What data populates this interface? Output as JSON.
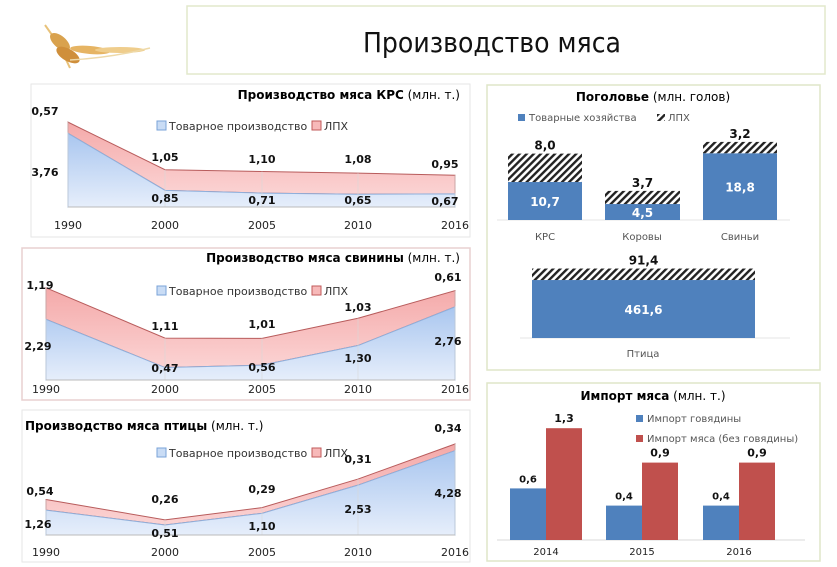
{
  "slide": {
    "title": "Производство мяса"
  },
  "colors": {
    "blue_fill": "#c9dcf5",
    "blue_line": "#7aa3d8",
    "red_fill": "#f7b9b9",
    "red_line": "#c05a5a",
    "bar_blue": "#4f81bd",
    "bar_red": "#c0504d",
    "panel_border": "#dfe6c8"
  },
  "chart_data": [
    {
      "type": "area",
      "stacked": true,
      "title": "Производство мяса КРС",
      "title_unit": "(млн. т.)",
      "categories": [
        "1990",
        "2000",
        "2005",
        "2010",
        "2016"
      ],
      "legend_position": "top",
      "series": [
        {
          "name": "Товарное производство",
          "values": [
            3.76,
            0.85,
            0.71,
            0.65,
            0.67
          ],
          "labels": [
            "3,76",
            "0,85",
            "0,71",
            "0,65",
            "0,67"
          ]
        },
        {
          "name": "ЛПХ",
          "values": [
            0.57,
            1.05,
            1.1,
            1.08,
            0.95
          ],
          "labels": [
            "0,57",
            "1,05",
            "1,10",
            "1,08",
            "0,95"
          ]
        }
      ]
    },
    {
      "type": "area",
      "stacked": true,
      "title": "Производство мяса свинины",
      "title_unit": "(млн. т.)",
      "categories": [
        "1990",
        "2000",
        "2005",
        "2010",
        "2016"
      ],
      "legend_position": "top",
      "series": [
        {
          "name": "Товарное производство",
          "values": [
            2.29,
            0.47,
            0.56,
            1.3,
            2.76
          ],
          "labels": [
            "2,29",
            "0,47",
            "0,56",
            "1,30",
            "2,76"
          ]
        },
        {
          "name": "ЛПХ",
          "values": [
            1.19,
            1.11,
            1.01,
            1.03,
            0.61
          ],
          "labels": [
            "1,19",
            "1,11",
            "1,01",
            "1,03",
            "0,61"
          ]
        }
      ]
    },
    {
      "type": "area",
      "stacked": true,
      "title": "Производство мяса птицы",
      "title_unit": "(млн. т.)",
      "categories": [
        "1990",
        "2000",
        "2005",
        "2010",
        "2016"
      ],
      "legend_position": "top",
      "series": [
        {
          "name": "Товарное производство",
          "values": [
            1.26,
            0.51,
            1.1,
            2.53,
            4.28
          ],
          "labels": [
            "1,26",
            "0,51",
            "1,10",
            "2,53",
            "4,28"
          ]
        },
        {
          "name": "ЛПХ",
          "values": [
            0.54,
            0.26,
            0.29,
            0.31,
            0.34
          ],
          "labels": [
            "0,54",
            "0,26",
            "0,29",
            "0,31",
            "0,34"
          ]
        }
      ]
    },
    {
      "type": "bar",
      "stacked": true,
      "title": "Поголовье",
      "title_unit": "(млн. голов)",
      "categories": [
        "КРС",
        "Коровы",
        "Свиньи",
        "Птица"
      ],
      "legend_position": "top",
      "series": [
        {
          "name": "Товарные хозяйства",
          "values": [
            10.7,
            4.5,
            18.8,
            461.6
          ],
          "labels": [
            "10,7",
            "4,5",
            "18,8",
            "461,6"
          ]
        },
        {
          "name": "ЛПХ",
          "values": [
            8.0,
            3.7,
            3.2,
            91.4
          ],
          "labels": [
            "8,0",
            "3,7",
            "3,2",
            "91,4"
          ],
          "pattern": "hatched"
        }
      ]
    },
    {
      "type": "bar",
      "title": "Импорт мяса",
      "title_unit": "(млн. т.)",
      "categories": [
        "2014",
        "2015",
        "2016"
      ],
      "legend_position": "right",
      "series": [
        {
          "name": "Импорт говядины",
          "values": [
            0.6,
            0.4,
            0.4
          ],
          "labels": [
            "0,6",
            "0,4",
            "0,4"
          ]
        },
        {
          "name": "Импорт мяса (без говядины)",
          "values": [
            1.3,
            0.9,
            0.9
          ],
          "labels": [
            "1,3",
            "0,9",
            "0,9"
          ]
        }
      ]
    }
  ]
}
